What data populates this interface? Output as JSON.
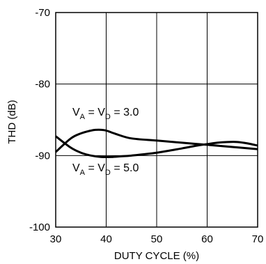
{
  "chart_data": {
    "type": "line",
    "xlabel": "DUTY CYCLE (%)",
    "ylabel": "THD (dB)",
    "xlim": [
      30,
      70
    ],
    "ylim": [
      -100,
      -70
    ],
    "x_ticks": [
      "30",
      "40",
      "50",
      "60",
      "70"
    ],
    "y_ticks": [
      "-70",
      "-80",
      "-90",
      "-100"
    ],
    "grid": true,
    "series": [
      {
        "x": [
          30,
          33,
          35,
          37,
          38,
          39,
          40,
          42,
          45,
          50,
          55,
          60,
          65,
          70
        ],
        "values": [
          -89.5,
          -87.6,
          -86.9,
          -86.5,
          -86.4,
          -86.4,
          -86.5,
          -87.0,
          -87.6,
          -87.9,
          -88.2,
          -88.5,
          -88.8,
          -89.1
        ]
      },
      {
        "x": [
          30,
          33,
          35,
          37,
          39,
          41,
          43,
          45,
          50,
          55,
          58,
          60,
          62,
          64,
          66,
          68,
          70
        ],
        "values": [
          -87.3,
          -88.9,
          -89.6,
          -90.0,
          -90.2,
          -90.2,
          -90.1,
          -90.0,
          -89.6,
          -89.0,
          -88.6,
          -88.4,
          -88.2,
          -88.1,
          -88.1,
          -88.3,
          -88.6
        ]
      }
    ],
    "annotations": [
      {
        "main": "V",
        "sub1": "A",
        "mid": " = V",
        "sub2": "D",
        "tail": " = 3.0"
      },
      {
        "main": "V",
        "sub1": "A",
        "mid": " = V",
        "sub2": "D",
        "tail": " = 5.0"
      }
    ]
  }
}
